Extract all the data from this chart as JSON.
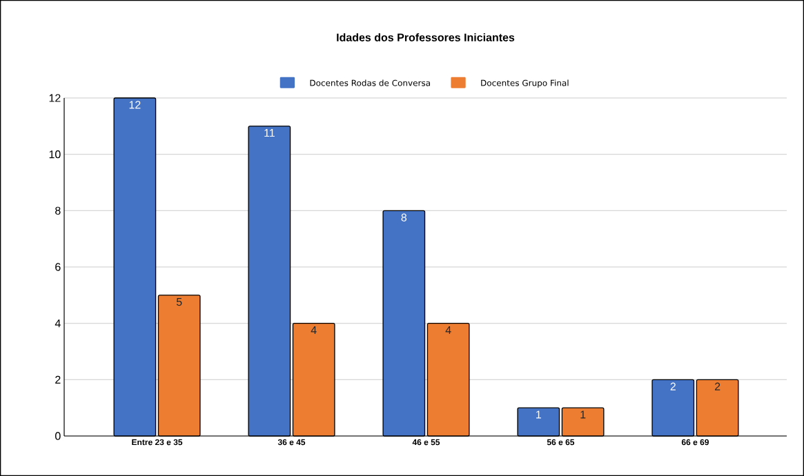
{
  "chart_data": {
    "type": "bar",
    "title": "Idades dos Professores Iniciantes",
    "categories": [
      "Entre 23 e 35",
      "36 e 45",
      "46 e 55",
      "56 e 65",
      "66 e 69"
    ],
    "series": [
      {
        "name": "Docentes Rodas de Conversa",
        "color": "#4472c4",
        "values": [
          12,
          11,
          8,
          1,
          2
        ]
      },
      {
        "name": "Docentes Grupo Final",
        "color": "#ed7d31",
        "values": [
          5,
          4,
          4,
          1,
          2
        ]
      }
    ],
    "ylim": [
      0,
      12
    ],
    "yticks": [
      0,
      2,
      4,
      6,
      8,
      10,
      12
    ],
    "grid": "y",
    "legend": "top",
    "data_labels": true
  }
}
